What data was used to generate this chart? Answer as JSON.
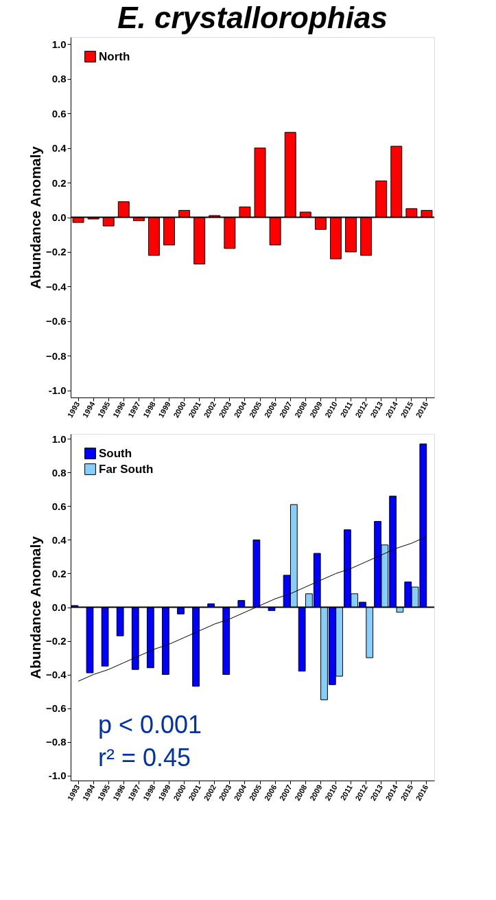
{
  "chart_data": [
    {
      "type": "bar",
      "title": "E. crystallorophias",
      "ylabel": "Abundance Anomaly",
      "categories": [
        "1993",
        "1994",
        "1995",
        "1996",
        "1997",
        "1998",
        "1999",
        "2000",
        "2001",
        "2002",
        "2003",
        "2004",
        "2005",
        "2006",
        "2007",
        "2008",
        "2009",
        "2010",
        "2011",
        "2012",
        "2013",
        "2014",
        "2015",
        "2016"
      ],
      "series": [
        {
          "name": "North",
          "color": "#ff0000",
          "values": [
            -0.03,
            -0.01,
            -0.05,
            0.09,
            -0.02,
            -0.22,
            -0.16,
            0.04,
            -0.27,
            0.01,
            -0.18,
            0.06,
            0.4,
            -0.16,
            0.49,
            0.03,
            -0.07,
            -0.24,
            -0.2,
            -0.22,
            0.21,
            0.41,
            0.05,
            0.04
          ]
        }
      ],
      "ylim": [
        -1.04,
        1.04
      ],
      "yticks": [
        {
          "value": -1,
          "label": "-1.0"
        },
        -0.8,
        -0.6,
        -0.4,
        -0.2,
        {
          "value": 0,
          "label": "0.0"
        },
        0.2,
        0.4,
        0.6,
        0.8,
        {
          "value": 1,
          "label": "1.0"
        }
      ],
      "ref_lines": [
        {
          "axis": "y",
          "value": 0,
          "color": "#000000"
        }
      ],
      "grid": false,
      "legend": "top left"
    },
    {
      "type": "bar",
      "ylabel": "Abundance Anomaly",
      "categories": [
        "1993",
        "1994",
        "1995",
        "1996",
        "1997",
        "1998",
        "1999",
        "2000",
        "2001",
        "2002",
        "2003",
        "2004",
        "2005",
        "2006",
        "2007",
        "2008",
        "2009",
        "2010",
        "2011",
        "2012",
        "2013",
        "2014",
        "2015",
        "2016"
      ],
      "series": [
        {
          "name": "South",
          "color": "#0000ff",
          "values": [
            0.01,
            -0.39,
            -0.35,
            -0.17,
            -0.37,
            -0.36,
            -0.4,
            -0.04,
            -0.47,
            0.02,
            -0.4,
            0.04,
            0.4,
            -0.02,
            0.19,
            -0.38,
            0.32,
            -0.46,
            0.46,
            0.03,
            0.51,
            0.66,
            0.15,
            0.97
          ]
        },
        {
          "name": "Far South",
          "color": "#87cefa",
          "values": [
            null,
            null,
            null,
            null,
            null,
            null,
            null,
            null,
            null,
            null,
            null,
            null,
            null,
            null,
            0.61,
            0.08,
            -0.55,
            -0.41,
            0.08,
            -0.3,
            0.37,
            -0.03,
            0.12,
            null
          ]
        },
        {
          "type": "line",
          "color": "#000000",
          "values": [
            -0.44,
            -0.4,
            -0.37,
            -0.33,
            -0.29,
            -0.25,
            -0.22,
            -0.18,
            -0.14,
            -0.1,
            -0.07,
            -0.03,
            0.01,
            0.05,
            0.08,
            0.12,
            0.16,
            0.2,
            0.23,
            0.27,
            0.31,
            0.35,
            0.38,
            0.42
          ]
        }
      ],
      "ylim": [
        -1.03,
        1.03
      ],
      "yticks": [
        {
          "value": -1,
          "label": "-1.0"
        },
        -0.8,
        -0.6,
        -0.4,
        -0.2,
        {
          "value": 0,
          "label": "0.0"
        },
        0.2,
        0.4,
        0.6,
        0.8,
        {
          "value": 1,
          "label": "1.0"
        }
      ],
      "ref_lines": [
        {
          "axis": "y",
          "value": 0,
          "color": "#000000"
        }
      ],
      "annotations": [
        "p < 0.001",
        "r² = 0.45"
      ],
      "grid": false,
      "legend": "top left"
    }
  ]
}
